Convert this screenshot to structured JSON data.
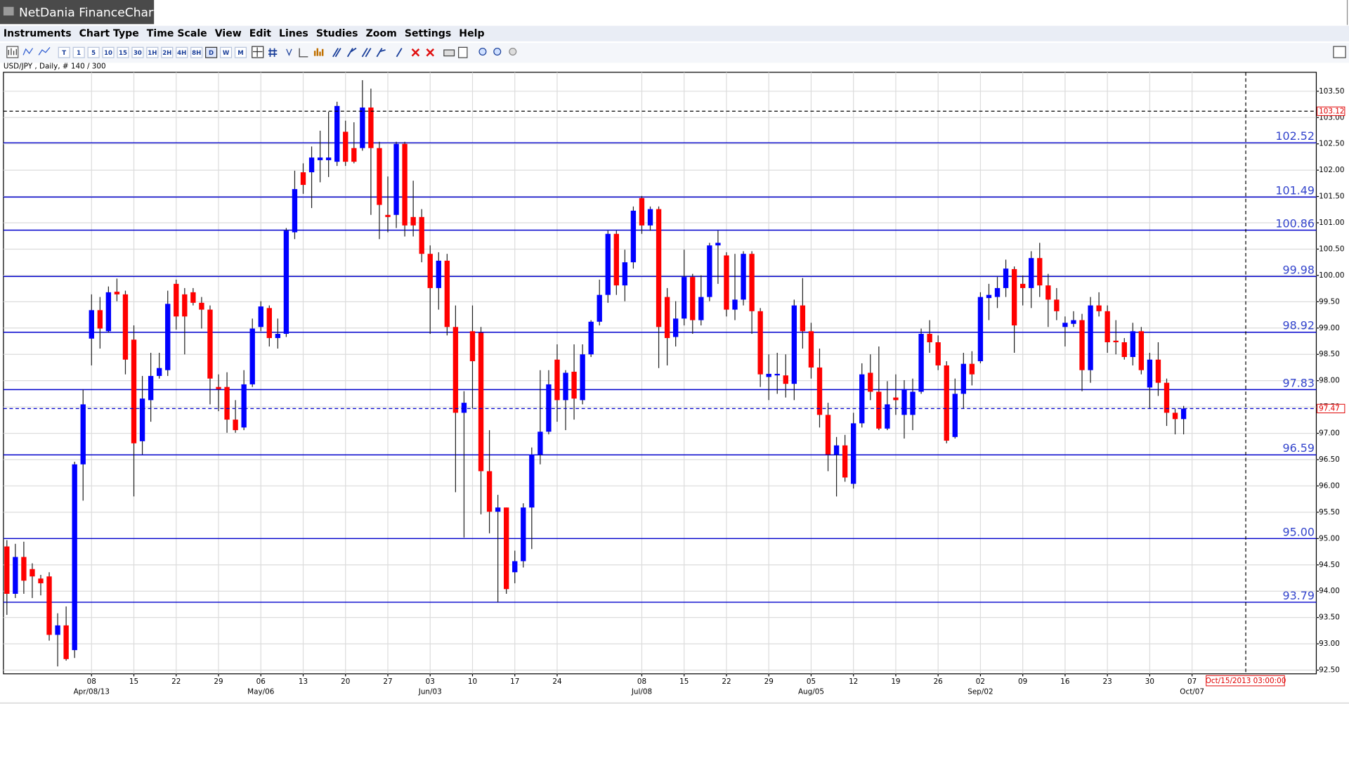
{
  "window_title": "NetDania FinanceChart",
  "menu": [
    "Instruments",
    "Chart Type",
    "Time Scale",
    "View",
    "Edit",
    "Lines",
    "Studies",
    "Zoom",
    "Settings",
    "Help"
  ],
  "toolbar_labels": [
    "T",
    "1",
    "5",
    "10",
    "15",
    "30",
    "1H",
    "2H",
    "4H",
    "8H",
    "D",
    "W",
    "M"
  ],
  "chart_data": {
    "type": "candlestick",
    "symbol_info": "USD/JPY , Daily, # 140 / 300",
    "categories": [
      null,
      null,
      null,
      null,
      null,
      null,
      null,
      null,
      null,
      null,
      "08",
      null,
      null,
      null,
      null,
      "15",
      null,
      null,
      null,
      null,
      "22",
      null,
      null,
      null,
      null,
      "29",
      null,
      null,
      null,
      null,
      "06",
      null,
      null,
      null,
      null,
      "13",
      null,
      null,
      null,
      null,
      "20",
      null,
      null,
      null,
      null,
      "27",
      null,
      null,
      null,
      null,
      "03",
      null,
      null,
      null,
      null,
      "10",
      null,
      null,
      null,
      null,
      "17",
      null,
      null,
      null,
      null,
      "24",
      null,
      null,
      null,
      null,
      null,
      null,
      null,
      null,
      null,
      "08",
      null,
      null,
      null,
      null,
      "15",
      null,
      null,
      null,
      null,
      "22",
      null,
      null,
      null,
      null,
      "29",
      null,
      null,
      null,
      null,
      "05",
      null,
      null,
      null,
      null,
      "12",
      null,
      null,
      null,
      null,
      "19",
      null,
      null,
      null,
      null,
      "26",
      null,
      null,
      null,
      null,
      "02",
      null,
      null,
      null,
      null,
      "09",
      null,
      null,
      null,
      null,
      "16",
      null,
      null,
      null,
      null,
      "23",
      null,
      null,
      null,
      null,
      "30",
      null,
      null,
      null,
      null
    ],
    "category_sublabels": [
      null,
      null,
      null,
      null,
      null,
      null,
      null,
      null,
      null,
      null,
      "Apr/08/13",
      null,
      null,
      null,
      null,
      null,
      null,
      null,
      null,
      null,
      null,
      null,
      null,
      null,
      null,
      null,
      null,
      null,
      null,
      null,
      "May/06",
      null,
      null,
      null,
      null,
      null,
      null,
      null,
      null,
      null,
      null,
      null,
      null,
      null,
      null,
      null,
      null,
      null,
      null,
      null,
      "Jun/03",
      null,
      null,
      null,
      null,
      null,
      null,
      null,
      null,
      null,
      null,
      null,
      null,
      null,
      null,
      null,
      null,
      null,
      null,
      null,
      null,
      null,
      null,
      null,
      null,
      "Jul/08",
      null,
      null,
      null,
      null,
      null,
      null,
      null,
      null,
      null,
      null,
      null,
      null,
      null,
      null,
      null,
      null,
      null,
      null,
      null,
      "Aug/05",
      null,
      null,
      null,
      null,
      null,
      null,
      null,
      null,
      null,
      null,
      null,
      null,
      null,
      null,
      null,
      null,
      null,
      null,
      null,
      "Sep/02",
      null,
      null,
      null,
      null,
      null,
      null,
      null,
      null,
      null,
      null,
      null,
      null,
      null,
      null,
      null,
      null,
      null,
      null,
      null,
      null,
      null,
      null,
      null,
      null
    ],
    "next_category": "07",
    "next_category_sublabel": "Oct/07",
    "open": [
      94.85,
      93.95,
      94.65,
      94.42,
      94.24,
      94.28,
      93.17,
      93.35,
      92.88,
      96.41,
      98.8,
      99.34,
      98.94,
      99.69,
      99.64,
      98.78,
      96.85,
      97.63,
      98.09,
      98.2,
      99.84,
      99.64,
      99.68,
      99.48,
      99.35,
      97.88,
      97.88,
      97.26,
      97.11,
      97.93,
      99.02,
      99.38,
      98.81,
      98.89,
      100.82,
      101.96,
      101.96,
      102.19,
      102.19,
      102.16,
      102.73,
      102.42,
      102.42,
      103.19,
      102.42,
      101.15,
      101.15,
      102.5,
      101.11,
      101.11,
      100.41,
      99.76,
      100.28,
      99.02,
      97.39,
      98.94,
      98.91,
      96.28,
      95.51,
      95.59,
      94.36,
      94.57,
      95.59,
      96.6,
      97.03,
      98.4,
      97.63,
      98.17,
      97.63,
      98.5,
      99.12,
      99.63,
      100.79,
      99.81,
      100.25,
      101.47,
      100.95,
      101.26,
      99.59,
      98.83,
      99.18,
      99.97,
      99.15,
      99.59,
      100.57,
      100.38,
      99.35,
      99.54,
      100.41,
      99.32,
      98.07,
      98.1,
      98.1,
      97.94,
      99.43,
      98.94,
      98.25,
      97.35,
      96.6,
      96.77,
      96.04,
      97.19,
      98.15,
      97.79,
      97.09,
      97.68,
      97.35,
      97.35,
      97.79,
      98.89,
      98.73,
      98.29,
      96.93,
      97.75,
      98.32,
      98.37,
      99.57,
      99.59,
      99.76,
      100.12,
      99.84,
      99.76,
      100.33,
      99.81,
      99.54,
      99.02,
      99.08,
      99.15,
      98.2,
      99.43,
      99.32,
      98.76,
      98.73,
      98.45,
      98.94,
      97.87,
      98.4,
      97.96,
      97.39,
      97.27
    ],
    "high": [
      94.97,
      94.9,
      94.94,
      94.53,
      94.31,
      94.36,
      93.58,
      93.71,
      96.46,
      97.83,
      99.64,
      99.59,
      99.79,
      99.94,
      99.71,
      99.05,
      98.09,
      98.53,
      98.53,
      99.71,
      99.92,
      99.76,
      99.76,
      99.59,
      99.43,
      98.12,
      98.16,
      97.63,
      98.2,
      99.18,
      99.51,
      99.43,
      99.18,
      100.9,
      101.99,
      102.13,
      102.45,
      102.75,
      103.11,
      103.3,
      102.94,
      102.91,
      103.71,
      103.55,
      102.54,
      101.88,
      102.54,
      102.54,
      101.8,
      101.26,
      100.57,
      100.44,
      100.41,
      99.43,
      97.8,
      99.43,
      99.02,
      97.06,
      95.83,
      95.59,
      94.77,
      95.67,
      96.73,
      98.2,
      98.2,
      98.69,
      98.2,
      98.69,
      98.69,
      99.15,
      99.92,
      100.85,
      100.85,
      100.49,
      101.31,
      101.51,
      101.31,
      101.31,
      99.76,
      99.51,
      100.49,
      100.03,
      100.0,
      100.62,
      100.85,
      100.44,
      100.41,
      100.46,
      100.46,
      99.38,
      98.5,
      98.53,
      98.5,
      99.54,
      99.95,
      99.1,
      98.61,
      97.58,
      96.93,
      96.97,
      97.39,
      98.33,
      98.5,
      98.65,
      97.99,
      98.12,
      98.01,
      98.04,
      98.99,
      99.15,
      98.86,
      98.37,
      98.04,
      98.53,
      98.56,
      99.68,
      99.84,
      99.97,
      100.3,
      100.17,
      100.0,
      100.46,
      100.62,
      100.03,
      99.76,
      99.22,
      99.32,
      99.27,
      99.59,
      99.68,
      99.43,
      99.15,
      98.81,
      99.1,
      99.02,
      98.53,
      98.73,
      98.04,
      97.47,
      97.52
    ],
    "low": [
      93.55,
      93.87,
      93.95,
      93.87,
      93.92,
      93.06,
      92.57,
      92.68,
      92.73,
      95.72,
      98.29,
      98.61,
      98.91,
      99.51,
      98.12,
      95.8,
      96.6,
      97.22,
      98.04,
      98.09,
      98.97,
      98.5,
      99.43,
      98.99,
      97.55,
      97.42,
      97.01,
      97.01,
      97.06,
      97.88,
      98.94,
      98.65,
      98.61,
      98.83,
      100.69,
      101.55,
      101.28,
      101.77,
      101.87,
      102.08,
      102.08,
      102.13,
      102.37,
      101.15,
      100.69,
      100.82,
      100.9,
      100.74,
      100.74,
      100.25,
      98.89,
      99.35,
      98.86,
      95.88,
      95.02,
      97.47,
      95.46,
      95.1,
      93.79,
      93.95,
      94.15,
      94.45,
      94.8,
      96.41,
      96.98,
      97.22,
      97.06,
      97.26,
      97.55,
      98.45,
      99.05,
      99.48,
      99.63,
      99.51,
      100.13,
      100.79,
      100.85,
      98.24,
      98.29,
      98.65,
      99.05,
      98.89,
      99.05,
      99.51,
      99.84,
      99.22,
      99.15,
      99.43,
      98.89,
      97.88,
      97.63,
      97.75,
      97.68,
      97.63,
      98.61,
      98.04,
      97.11,
      96.28,
      95.8,
      96.08,
      95.95,
      97.11,
      97.63,
      97.06,
      97.06,
      97.35,
      96.9,
      97.06,
      97.75,
      98.53,
      98.2,
      96.81,
      96.9,
      97.47,
      97.91,
      98.33,
      99.15,
      99.38,
      99.59,
      98.53,
      99.43,
      99.38,
      99.59,
      99.02,
      99.15,
      98.65,
      99.02,
      97.8,
      97.96,
      99.22,
      98.53,
      98.5,
      98.4,
      98.29,
      98.12,
      97.47,
      97.71,
      97.14,
      96.98,
      96.98
    ],
    "close": [
      93.95,
      94.65,
      94.2,
      94.28,
      94.15,
      93.17,
      93.35,
      92.71,
      96.41,
      97.55,
      99.34,
      98.99,
      99.68,
      99.64,
      98.4,
      96.81,
      97.66,
      98.09,
      98.24,
      99.46,
      99.22,
      99.22,
      99.48,
      99.35,
      98.04,
      97.84,
      97.26,
      97.06,
      97.93,
      98.99,
      99.41,
      98.81,
      98.89,
      100.85,
      101.64,
      101.72,
      102.24,
      102.24,
      102.24,
      103.22,
      102.16,
      102.16,
      103.19,
      102.42,
      101.34,
      101.11,
      102.5,
      100.95,
      100.95,
      100.41,
      99.76,
      100.28,
      99.02,
      97.39,
      97.58,
      98.37,
      96.28,
      95.51,
      95.59,
      94.04,
      94.57,
      95.59,
      96.6,
      97.03,
      97.93,
      97.63,
      98.15,
      97.66,
      98.5,
      99.12,
      99.63,
      100.79,
      99.81,
      100.25,
      101.23,
      100.95,
      101.26,
      99.02,
      98.81,
      99.18,
      99.97,
      99.15,
      99.59,
      100.57,
      100.62,
      99.35,
      99.54,
      100.41,
      99.32,
      98.12,
      98.13,
      98.13,
      97.94,
      99.43,
      98.94,
      98.25,
      97.35,
      96.6,
      96.77,
      96.16,
      97.19,
      98.12,
      97.79,
      97.09,
      97.55,
      97.63,
      97.84,
      97.79,
      98.89,
      98.73,
      98.29,
      96.86,
      97.75,
      98.32,
      98.12,
      99.59,
      99.63,
      99.76,
      100.13,
      99.05,
      99.76,
      100.33,
      99.81,
      99.54,
      99.32,
      99.1,
      99.15,
      98.2,
      99.43,
      99.32,
      98.73,
      98.73,
      98.45,
      98.94,
      98.2,
      98.4,
      97.96,
      97.39,
      97.27,
      97.47
    ],
    "up_color": "#0000ff",
    "down_color": "#ff0000",
    "ylim": [
      92.43,
      103.86
    ],
    "yticks": [
      {
        "value": 92.5,
        "label": "92.50"
      },
      {
        "value": 93,
        "label": "93.00"
      },
      {
        "value": 93.5,
        "label": "93.50"
      },
      {
        "value": 94,
        "label": "94.00"
      },
      {
        "value": 94.5,
        "label": "94.50"
      },
      {
        "value": 95,
        "label": "95.00"
      },
      {
        "value": 95.5,
        "label": "95.50"
      },
      {
        "value": 96,
        "label": "96.00"
      },
      {
        "value": 96.5,
        "label": "96.50"
      },
      {
        "value": 97,
        "label": "97.00"
      },
      {
        "value": 97.5,
        "label": "97.50"
      },
      {
        "value": 98,
        "label": "98.00"
      },
      {
        "value": 98.5,
        "label": "98.50"
      },
      {
        "value": 99,
        "label": "99.00"
      },
      {
        "value": 99.5,
        "label": "99.50"
      },
      {
        "value": 100,
        "label": "100.00"
      },
      {
        "value": 100.5,
        "label": "100.50"
      },
      {
        "value": 101,
        "label": "101.00"
      },
      {
        "value": 101.5,
        "label": "101.50"
      },
      {
        "value": 102,
        "label": "102.00"
      },
      {
        "value": 102.5,
        "label": "102.50"
      },
      {
        "value": 103,
        "label": "103.00"
      },
      {
        "value": 103.5,
        "label": "103.50"
      }
    ],
    "grid": true,
    "levels": [
      102.52,
      101.49,
      100.86,
      99.98,
      98.92,
      97.83,
      96.59,
      {
        "value": 95,
        "label": "95.00"
      },
      93.79
    ],
    "level_color": "#0000cc",
    "last_price": 97.47,
    "cursor_price": 103.12,
    "cursor_date": "Oct/15/2013 03:00:00"
  }
}
